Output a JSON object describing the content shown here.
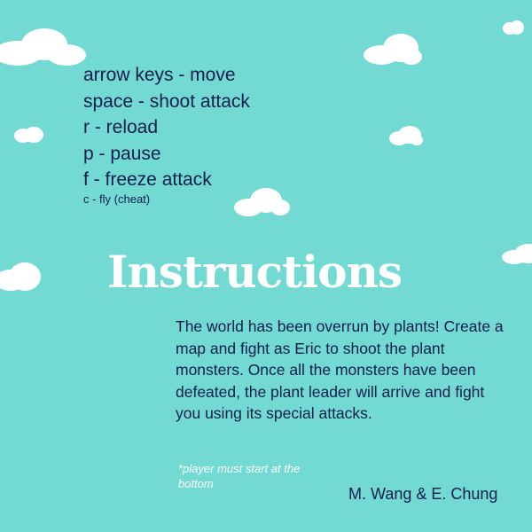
{
  "controls": {
    "move": "arrow keys - move",
    "shoot": "space - shoot attack",
    "reload": "r - reload",
    "pause": "p - pause",
    "freeze": "f - freeze attack",
    "fly": "c - fly (cheat)"
  },
  "title": "Instructions",
  "description": "The world has been overrun by plants! Create a map and fight as Eric to shoot the plant monsters. Once all the monsters have been defeated, the plant leader will arrive and fight you using its special attacks.",
  "note": "*player must start at the bottom",
  "credits": "M. Wang & E. Chung",
  "colors": {
    "background": "#72d9d3",
    "text_dark": "#0f1f4a",
    "text_light": "#ffffff",
    "cloud": "#ffffff"
  },
  "icons": [
    "cloud-icon"
  ]
}
